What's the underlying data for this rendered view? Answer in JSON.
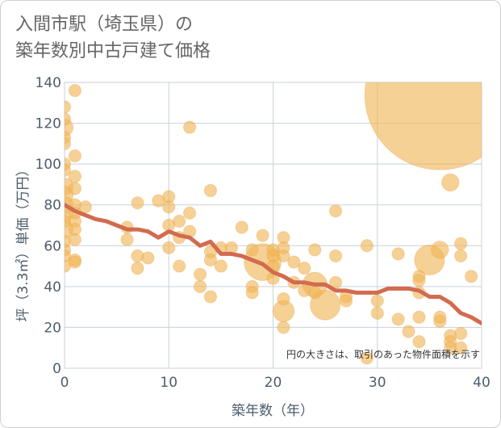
{
  "title_line1": "入間市駅（埼玉県）の",
  "title_line2": "築年数別中古戸建て価格",
  "chart_data": {
    "type": "scatter",
    "title": "入間市駅（埼玉県）の 築年数別中古戸建て価格",
    "xlabel": "築年数（年）",
    "ylabel": "坪（3.3㎡）単価（万円）",
    "xlim": [
      0,
      40
    ],
    "ylim": [
      0,
      140
    ],
    "xticks": [
      0,
      10,
      20,
      30,
      40
    ],
    "yticks": [
      0,
      20,
      40,
      60,
      80,
      100,
      120,
      140
    ],
    "grid": true,
    "note": "円の大きさは、取引のあった物件面積を示す",
    "colors": {
      "points": "#f0b456",
      "trend": "#d26b4f"
    },
    "series": [
      {
        "type": "scatter",
        "points": [
          {
            "x": 0,
            "y": 128,
            "s": 1
          },
          {
            "x": 0,
            "y": 122,
            "s": 1
          },
          {
            "x": 0,
            "y": 118,
            "s": 2
          },
          {
            "x": 0,
            "y": 113,
            "s": 1
          },
          {
            "x": 0,
            "y": 110,
            "s": 1
          },
          {
            "x": 0,
            "y": 100,
            "s": 1
          },
          {
            "x": 0,
            "y": 97,
            "s": 1
          },
          {
            "x": 0,
            "y": 89,
            "s": 2
          },
          {
            "x": 0,
            "y": 85,
            "s": 2
          },
          {
            "x": 0,
            "y": 80,
            "s": 2
          },
          {
            "x": 0,
            "y": 76,
            "s": 2
          },
          {
            "x": 0,
            "y": 72,
            "s": 1
          },
          {
            "x": 0,
            "y": 68,
            "s": 2
          },
          {
            "x": 0,
            "y": 62,
            "s": 1
          },
          {
            "x": 0,
            "y": 58,
            "s": 1
          },
          {
            "x": 0,
            "y": 55,
            "s": 1
          },
          {
            "x": 0,
            "y": 50,
            "s": 1
          },
          {
            "x": 1,
            "y": 136,
            "s": 1
          },
          {
            "x": 1,
            "y": 104,
            "s": 1
          },
          {
            "x": 1,
            "y": 94,
            "s": 1
          },
          {
            "x": 1,
            "y": 88,
            "s": 1
          },
          {
            "x": 1,
            "y": 80,
            "s": 1
          },
          {
            "x": 1,
            "y": 76,
            "s": 1
          },
          {
            "x": 1,
            "y": 72,
            "s": 1
          },
          {
            "x": 1,
            "y": 68,
            "s": 1
          },
          {
            "x": 1,
            "y": 63,
            "s": 1
          },
          {
            "x": 1,
            "y": 53,
            "s": 1
          },
          {
            "x": 1,
            "y": 52,
            "s": 1
          },
          {
            "x": 2,
            "y": 79,
            "s": 1
          },
          {
            "x": 6,
            "y": 69,
            "s": 1
          },
          {
            "x": 6,
            "y": 63,
            "s": 1
          },
          {
            "x": 7,
            "y": 81,
            "s": 1
          },
          {
            "x": 7,
            "y": 55,
            "s": 1
          },
          {
            "x": 7,
            "y": 49,
            "s": 1
          },
          {
            "x": 8,
            "y": 54,
            "s": 1
          },
          {
            "x": 9,
            "y": 82,
            "s": 1
          },
          {
            "x": 10,
            "y": 84,
            "s": 1
          },
          {
            "x": 10,
            "y": 79,
            "s": 1
          },
          {
            "x": 10,
            "y": 70,
            "s": 1
          },
          {
            "x": 10,
            "y": 59,
            "s": 1
          },
          {
            "x": 11,
            "y": 72,
            "s": 1
          },
          {
            "x": 11,
            "y": 64,
            "s": 1
          },
          {
            "x": 11,
            "y": 50,
            "s": 1
          },
          {
            "x": 12,
            "y": 118,
            "s": 1
          },
          {
            "x": 12,
            "y": 76,
            "s": 1
          },
          {
            "x": 12,
            "y": 67,
            "s": 1
          },
          {
            "x": 13,
            "y": 46,
            "s": 1
          },
          {
            "x": 13,
            "y": 40,
            "s": 1
          },
          {
            "x": 14,
            "y": 87,
            "s": 1
          },
          {
            "x": 14,
            "y": 57,
            "s": 1
          },
          {
            "x": 14,
            "y": 53,
            "s": 1
          },
          {
            "x": 14,
            "y": 35,
            "s": 1
          },
          {
            "x": 15,
            "y": 59,
            "s": 1
          },
          {
            "x": 15,
            "y": 50,
            "s": 1
          },
          {
            "x": 16,
            "y": 59,
            "s": 1
          },
          {
            "x": 17,
            "y": 69,
            "s": 1
          },
          {
            "x": 18,
            "y": 58,
            "s": 1
          },
          {
            "x": 18,
            "y": 40,
            "s": 1
          },
          {
            "x": 18,
            "y": 37,
            "s": 1
          },
          {
            "x": 19,
            "y": 65,
            "s": 1
          },
          {
            "x": 19,
            "y": 52,
            "s": 9
          },
          {
            "x": 20,
            "y": 58,
            "s": 1
          },
          {
            "x": 20,
            "y": 55,
            "s": 1
          },
          {
            "x": 20,
            "y": 50,
            "s": 1
          },
          {
            "x": 20,
            "y": 44,
            "s": 1
          },
          {
            "x": 21,
            "y": 64,
            "s": 1
          },
          {
            "x": 21,
            "y": 59,
            "s": 1
          },
          {
            "x": 21,
            "y": 55,
            "s": 1
          },
          {
            "x": 21,
            "y": 34,
            "s": 1
          },
          {
            "x": 21,
            "y": 28,
            "s": 3
          },
          {
            "x": 21,
            "y": 20,
            "s": 1
          },
          {
            "x": 22,
            "y": 52,
            "s": 1
          },
          {
            "x": 22,
            "y": 42,
            "s": 1
          },
          {
            "x": 23,
            "y": 49,
            "s": 1
          },
          {
            "x": 23,
            "y": 38,
            "s": 1
          },
          {
            "x": 24,
            "y": 58,
            "s": 1
          },
          {
            "x": 24,
            "y": 41,
            "s": 4
          },
          {
            "x": 24,
            "y": 37,
            "s": 1
          },
          {
            "x": 25,
            "y": 31,
            "s": 6
          },
          {
            "x": 26,
            "y": 77,
            "s": 1
          },
          {
            "x": 26,
            "y": 55,
            "s": 1
          },
          {
            "x": 26,
            "y": 42,
            "s": 1
          },
          {
            "x": 27,
            "y": 35,
            "s": 1
          },
          {
            "x": 27,
            "y": 33,
            "s": 1
          },
          {
            "x": 29,
            "y": 60,
            "s": 1
          },
          {
            "x": 29,
            "y": 5,
            "s": 1
          },
          {
            "x": 30,
            "y": 33,
            "s": 1
          },
          {
            "x": 30,
            "y": 27,
            "s": 1
          },
          {
            "x": 32,
            "y": 56,
            "s": 1
          },
          {
            "x": 32,
            "y": 24,
            "s": 1
          },
          {
            "x": 33,
            "y": 18,
            "s": 1
          },
          {
            "x": 34,
            "y": 45,
            "s": 1
          },
          {
            "x": 34,
            "y": 43,
            "s": 1
          },
          {
            "x": 34,
            "y": 37,
            "s": 1
          },
          {
            "x": 34,
            "y": 25,
            "s": 1
          },
          {
            "x": 34,
            "y": 13,
            "s": 1
          },
          {
            "x": 35,
            "y": 53,
            "s": 6
          },
          {
            "x": 36,
            "y": 134,
            "s": 150
          },
          {
            "x": 36,
            "y": 58,
            "s": 2
          },
          {
            "x": 36,
            "y": 25,
            "s": 1
          },
          {
            "x": 36,
            "y": 23,
            "s": 1
          },
          {
            "x": 37,
            "y": 91,
            "s": 2
          },
          {
            "x": 37,
            "y": 16,
            "s": 1
          },
          {
            "x": 37,
            "y": 13,
            "s": 1
          },
          {
            "x": 37,
            "y": 10,
            "s": 1
          },
          {
            "x": 38,
            "y": 61,
            "s": 1
          },
          {
            "x": 38,
            "y": 55,
            "s": 1
          },
          {
            "x": 38,
            "y": 17,
            "s": 1
          },
          {
            "x": 38,
            "y": 10,
            "s": 1
          },
          {
            "x": 39,
            "y": 45,
            "s": 1
          }
        ]
      },
      {
        "type": "line",
        "x": [
          0,
          1,
          2,
          3,
          4,
          5,
          6,
          7,
          8,
          9,
          10,
          11,
          12,
          13,
          14,
          15,
          16,
          17,
          18,
          19,
          20,
          21,
          22,
          23,
          24,
          25,
          26,
          27,
          28,
          29,
          30,
          31,
          32,
          33,
          34,
          35,
          36,
          37,
          38,
          39,
          40
        ],
        "y": [
          80,
          77,
          75,
          73,
          72,
          70,
          68,
          68,
          67,
          64,
          67,
          65,
          64,
          60,
          62,
          56,
          56,
          55,
          53,
          51,
          47,
          45,
          42,
          42,
          41,
          41,
          38,
          38,
          37,
          37,
          37,
          39,
          39,
          39,
          38,
          35,
          35,
          32,
          27,
          25,
          22
        ]
      }
    ]
  }
}
